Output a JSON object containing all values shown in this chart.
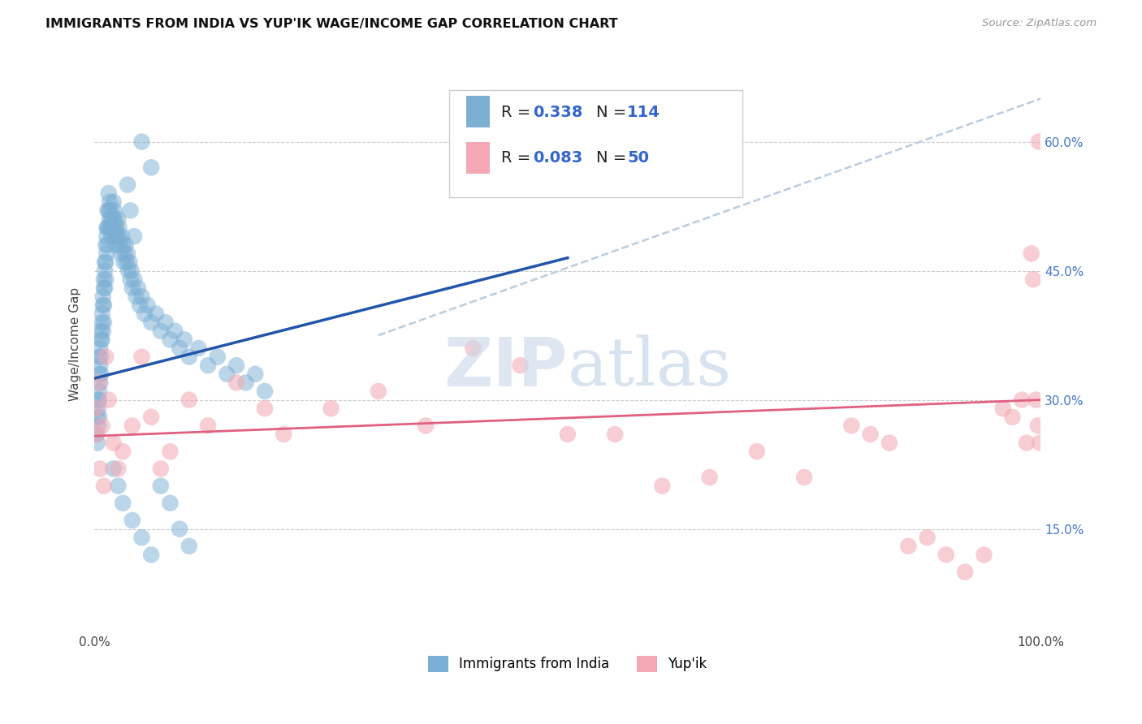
{
  "title": "IMMIGRANTS FROM INDIA VS YUP'IK WAGE/INCOME GAP CORRELATION CHART",
  "source": "Source: ZipAtlas.com",
  "ylabel": "Wage/Income Gap",
  "ytick_values": [
    0.15,
    0.3,
    0.45,
    0.6
  ],
  "ytick_labels": [
    "15.0%",
    "30.0%",
    "45.0%",
    "60.0%"
  ],
  "xlim": [
    0.0,
    1.0
  ],
  "ylim": [
    0.03,
    0.7
  ],
  "legend_label1": "Immigrants from India",
  "legend_label2": "Yup'ik",
  "r1": "0.338",
  "n1": "114",
  "r2": "0.083",
  "n2": "50",
  "color_blue": "#7BAFD4",
  "color_pink": "#F4A7B4",
  "color_line_blue": "#2255AA",
  "color_line_pink": "#E06080",
  "color_line_dash": "#BBCCDD",
  "india_x": [
    0.002,
    0.003,
    0.003,
    0.004,
    0.004,
    0.004,
    0.005,
    0.005,
    0.005,
    0.005,
    0.005,
    0.006,
    0.006,
    0.006,
    0.007,
    0.007,
    0.007,
    0.007,
    0.008,
    0.008,
    0.008,
    0.009,
    0.009,
    0.009,
    0.01,
    0.01,
    0.01,
    0.01,
    0.011,
    0.011,
    0.011,
    0.012,
    0.012,
    0.012,
    0.013,
    0.013,
    0.013,
    0.014,
    0.014,
    0.014,
    0.015,
    0.015,
    0.015,
    0.016,
    0.016,
    0.017,
    0.017,
    0.018,
    0.018,
    0.019,
    0.02,
    0.02,
    0.021,
    0.021,
    0.022,
    0.022,
    0.023,
    0.023,
    0.024,
    0.025,
    0.025,
    0.026,
    0.027,
    0.028,
    0.029,
    0.03,
    0.031,
    0.032,
    0.033,
    0.034,
    0.035,
    0.036,
    0.037,
    0.038,
    0.039,
    0.04,
    0.042,
    0.044,
    0.046,
    0.048,
    0.05,
    0.053,
    0.056,
    0.06,
    0.065,
    0.07,
    0.075,
    0.08,
    0.085,
    0.09,
    0.095,
    0.1,
    0.11,
    0.12,
    0.13,
    0.14,
    0.15,
    0.16,
    0.17,
    0.18,
    0.02,
    0.025,
    0.03,
    0.04,
    0.05,
    0.06,
    0.07,
    0.08,
    0.09,
    0.1,
    0.05,
    0.06,
    0.035,
    0.038,
    0.042
  ],
  "india_y": [
    0.26,
    0.28,
    0.25,
    0.3,
    0.27,
    0.29,
    0.31,
    0.33,
    0.3,
    0.28,
    0.35,
    0.36,
    0.34,
    0.32,
    0.38,
    0.37,
    0.35,
    0.33,
    0.4,
    0.39,
    0.37,
    0.42,
    0.41,
    0.38,
    0.44,
    0.43,
    0.41,
    0.39,
    0.46,
    0.45,
    0.43,
    0.48,
    0.46,
    0.44,
    0.5,
    0.49,
    0.47,
    0.52,
    0.5,
    0.48,
    0.54,
    0.52,
    0.5,
    0.53,
    0.51,
    0.52,
    0.5,
    0.51,
    0.49,
    0.5,
    0.53,
    0.51,
    0.52,
    0.5,
    0.51,
    0.49,
    0.5,
    0.48,
    0.49,
    0.51,
    0.49,
    0.5,
    0.48,
    0.47,
    0.49,
    0.48,
    0.46,
    0.47,
    0.48,
    0.46,
    0.47,
    0.45,
    0.46,
    0.44,
    0.45,
    0.43,
    0.44,
    0.42,
    0.43,
    0.41,
    0.42,
    0.4,
    0.41,
    0.39,
    0.4,
    0.38,
    0.39,
    0.37,
    0.38,
    0.36,
    0.37,
    0.35,
    0.36,
    0.34,
    0.35,
    0.33,
    0.34,
    0.32,
    0.33,
    0.31,
    0.22,
    0.2,
    0.18,
    0.16,
    0.14,
    0.12,
    0.2,
    0.18,
    0.15,
    0.13,
    0.6,
    0.57,
    0.55,
    0.52,
    0.49
  ],
  "yupik_x": [
    0.002,
    0.003,
    0.005,
    0.006,
    0.008,
    0.01,
    0.012,
    0.015,
    0.02,
    0.025,
    0.03,
    0.04,
    0.05,
    0.06,
    0.07,
    0.08,
    0.1,
    0.12,
    0.15,
    0.18,
    0.2,
    0.25,
    0.3,
    0.35,
    0.4,
    0.45,
    0.5,
    0.55,
    0.6,
    0.65,
    0.7,
    0.75,
    0.8,
    0.82,
    0.84,
    0.86,
    0.88,
    0.9,
    0.92,
    0.94,
    0.96,
    0.97,
    0.98,
    0.985,
    0.99,
    0.992,
    0.995,
    0.997,
    0.998,
    0.999
  ],
  "yupik_y": [
    0.29,
    0.26,
    0.32,
    0.22,
    0.27,
    0.2,
    0.35,
    0.3,
    0.25,
    0.22,
    0.24,
    0.27,
    0.35,
    0.28,
    0.22,
    0.24,
    0.3,
    0.27,
    0.32,
    0.29,
    0.26,
    0.29,
    0.31,
    0.27,
    0.36,
    0.34,
    0.26,
    0.26,
    0.2,
    0.21,
    0.24,
    0.21,
    0.27,
    0.26,
    0.25,
    0.13,
    0.14,
    0.12,
    0.1,
    0.12,
    0.29,
    0.28,
    0.3,
    0.25,
    0.47,
    0.44,
    0.3,
    0.27,
    0.6,
    0.25
  ],
  "blue_trendline_x": [
    0.0,
    0.5
  ],
  "blue_trendline_y": [
    0.325,
    0.465
  ],
  "pink_trendline_x": [
    0.0,
    1.0
  ],
  "pink_trendline_y": [
    0.258,
    0.3
  ],
  "dash_trendline_x": [
    0.3,
    1.0
  ],
  "dash_trendline_y": [
    0.375,
    0.65
  ]
}
